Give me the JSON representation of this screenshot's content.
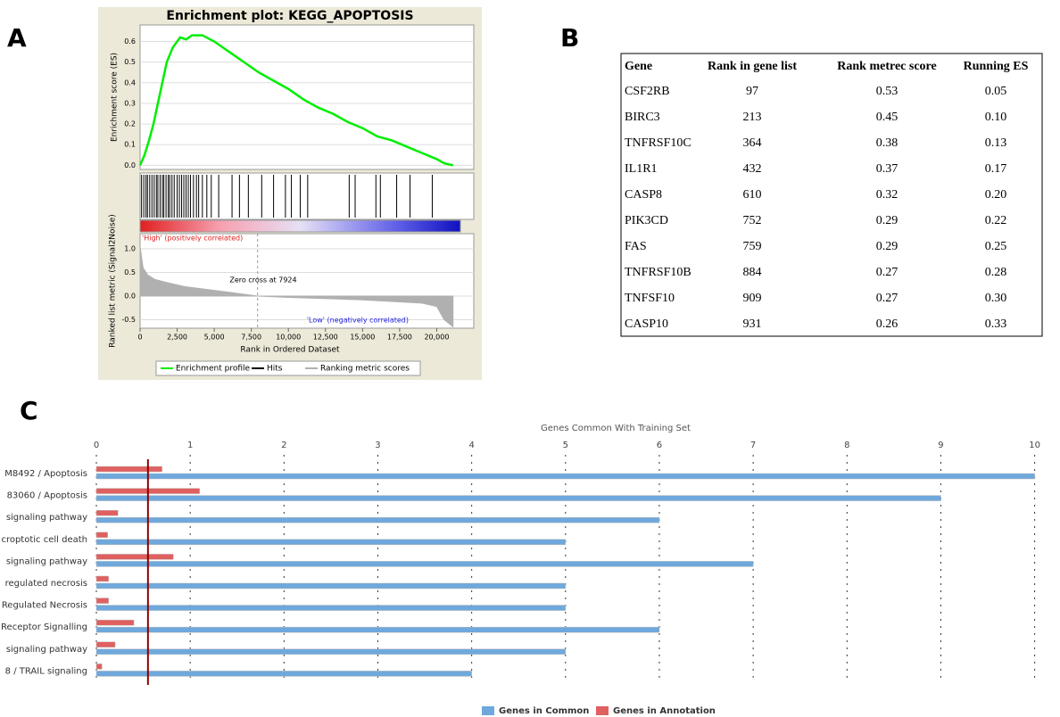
{
  "panel_labels": [
    "A",
    "B",
    "C"
  ],
  "chart_data": [
    {
      "type": "gsea",
      "title": "Enrichment plot: KEGG_APOPTOSIS",
      "xlabel": "Rank in Ordered Dataset",
      "xlim": [
        0,
        22500
      ],
      "xticks": [
        0,
        {
          "value": 2500,
          "label": "2,500"
        },
        {
          "value": 5000,
          "label": "5,000"
        },
        {
          "value": 7500,
          "label": "7,500"
        },
        {
          "value": 10000,
          "label": "10,000"
        },
        {
          "value": 12500,
          "label": "12,500"
        },
        {
          "value": 15000,
          "label": "15,000"
        },
        {
          "value": 17500,
          "label": "17,500"
        },
        {
          "value": 20000,
          "label": "20,000"
        }
      ],
      "es": {
        "ylabel": "Enrichment score (ES)",
        "ylim": [
          -0.02,
          0.68
        ],
        "yticks": [
          {
            "value": 0,
            "label": "0.0"
          },
          0.1,
          0.2,
          0.3,
          0.4,
          0.5,
          0.6
        ],
        "color": "#00ee00",
        "x": [
          0,
          300,
          600,
          900,
          1200,
          1500,
          1800,
          2200,
          2700,
          3100,
          3500,
          4200,
          5000,
          6000,
          7000,
          8000,
          9000,
          10000,
          11000,
          12000,
          13000,
          14000,
          15000,
          16000,
          17000,
          18000,
          19000,
          20000,
          20500,
          21100
        ],
        "values": [
          0,
          0.05,
          0.12,
          0.2,
          0.3,
          0.4,
          0.5,
          0.57,
          0.62,
          0.61,
          0.63,
          0.63,
          0.6,
          0.55,
          0.5,
          0.45,
          0.41,
          0.37,
          0.32,
          0.28,
          0.25,
          0.21,
          0.18,
          0.14,
          0.12,
          0.09,
          0.06,
          0.03,
          0.01,
          0
        ]
      },
      "hits": {
        "color": "#000000",
        "x": [
          100,
          250,
          400,
          500,
          650,
          800,
          950,
          1100,
          1200,
          1350,
          1500,
          1600,
          1750,
          1900,
          2000,
          2150,
          2300,
          2500,
          2650,
          2800,
          2950,
          3100,
          3250,
          3400,
          3600,
          3800,
          3950,
          4200,
          4500,
          4800,
          5300,
          6200,
          6700,
          7300,
          8200,
          9000,
          9800,
          10200,
          10800,
          11300,
          14100,
          14500,
          15900,
          16200,
          17300,
          18200,
          19700
        ]
      },
      "metric": {
        "ylabel": "Ranked list metric (Signal2Noise)",
        "ylim": [
          -0.68,
          1.32
        ],
        "yticks": [
          -0.5,
          {
            "value": 0,
            "label": "0.0"
          },
          0.5,
          {
            "value": 1,
            "label": "1.0"
          }
        ],
        "color": "#b0b0b0",
        "x": [
          0,
          200,
          500,
          1000,
          2000,
          3000,
          5000,
          7924,
          10000,
          15000,
          19000,
          20000,
          20500,
          21100
        ],
        "values": [
          1.05,
          0.6,
          0.45,
          0.35,
          0.27,
          0.2,
          0.12,
          0,
          -0.03,
          -0.08,
          -0.15,
          -0.22,
          -0.5,
          -0.65
        ]
      },
      "zero_cross": 7924,
      "annotations": [
        "Zero cross at 7924",
        "'High' (positively correlated)",
        "'Low' (negatively correlated)"
      ],
      "legend": [
        "Enrichment profile",
        "Hits",
        "Ranking metric scores"
      ]
    },
    {
      "type": "hbar",
      "title": "Genes Common With Training Set",
      "categories": [
        "M8492 / Apoptosis",
        "83060 / Apoptosis",
        "signaling pathway",
        "croptotic cell death",
        "signaling pathway",
        "regulated necrosis",
        "Regulated Necrosis",
        "Receptor Signalling",
        "signaling pathway",
        "8 / TRAIL signaling"
      ],
      "series": [
        {
          "name": "Genes in Annotation",
          "color": "#e06060",
          "values": [
            0.7,
            1.1,
            0.23,
            0.12,
            0.82,
            0.13,
            0.13,
            0.4,
            0.2,
            0.06
          ]
        },
        {
          "name": "Genes in Common",
          "color": "#6fa8dc",
          "values": [
            10,
            9,
            6,
            5,
            7,
            5,
            5,
            6,
            5,
            4
          ]
        }
      ],
      "xlim": [
        0,
        10.27
      ],
      "xticks": [
        0,
        1,
        2,
        3,
        4,
        5,
        6,
        7,
        8,
        9,
        10
      ],
      "threshold": 0.55,
      "threshold_color": "#8b0000"
    }
  ],
  "table": {
    "header": [
      "Gene",
      "Rank in gene list",
      "Rank metrec score",
      "Running ES"
    ],
    "rows": [
      [
        "CSF2RB",
        "97",
        "0.53",
        "0.05"
      ],
      [
        "BIRC3",
        "213",
        "0.45",
        "0.10"
      ],
      [
        "TNFRSF10C",
        "364",
        "0.38",
        "0.13"
      ],
      [
        "IL1R1",
        "432",
        "0.37",
        "0.17"
      ],
      [
        "CASP8",
        "610",
        "0.32",
        "0.20"
      ],
      [
        "PIK3CD",
        "752",
        "0.29",
        "0.22"
      ],
      [
        "FAS",
        "759",
        "0.29",
        "0.25"
      ],
      [
        "TNFRSF10B",
        "884",
        "0.27",
        "0.28"
      ],
      [
        "TNFSF10",
        "909",
        "0.27",
        "0.30"
      ],
      [
        "CASP10",
        "931",
        "0.26",
        "0.33"
      ]
    ]
  }
}
